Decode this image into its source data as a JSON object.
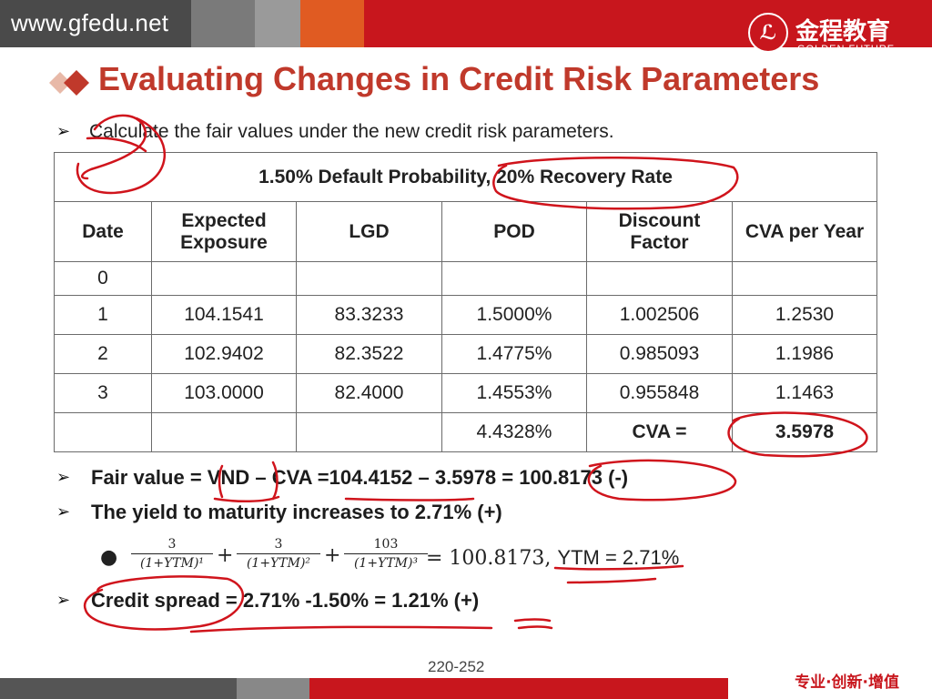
{
  "header": {
    "site_url": "www.gfedu.net",
    "brand_cn": "金程教育",
    "brand_en": "GOLDEN FUTURE",
    "logo_glyph": "ℒ"
  },
  "title": "Evaluating Changes in Credit Risk Parameters",
  "intro": "Calculate the fair values under the new credit risk parameters.",
  "table": {
    "banner": "1.50% Default Probability, 20% Recovery Rate",
    "headers": [
      "Date",
      "Expected Exposure",
      "LGD",
      "POD",
      "Discount Factor",
      "CVA per Year"
    ],
    "rows": [
      [
        "0",
        "",
        "",
        "",
        "",
        ""
      ],
      [
        "1",
        "104.1541",
        "83.3233",
        "1.5000%",
        "1.002506",
        "1.2530"
      ],
      [
        "2",
        "102.9402",
        "82.3522",
        "1.4775%",
        "0.985093",
        "1.1986"
      ],
      [
        "3",
        "103.0000",
        "82.4000",
        "1.4553%",
        "0.955848",
        "1.1463"
      ],
      [
        "",
        "",
        "",
        "4.4328%",
        "CVA =",
        "3.5978"
      ]
    ]
  },
  "fair_value_line": "Fair value = VND – CVA =104.4152 – 3.5978 = 100.8173 (-)",
  "ytm_line": "The yield to maturity increases to 2.71% (+)",
  "formula": {
    "terms": [
      {
        "num": "3",
        "den": "(1+YTM)¹"
      },
      {
        "num": "3",
        "den": "(1+YTM)²"
      },
      {
        "num": "103",
        "den": "(1+YTM)³"
      }
    ],
    "result": "= 100.8173,",
    "ytm": "YTM = 2.71%"
  },
  "credit_spread_line": "Credit spread = 2.71% -1.50% = 1.21% (+)",
  "page_number": "220-252",
  "slogan": "专业·创新·增值",
  "colors": {
    "title": "#c0392b",
    "band_dark": "#5a5a5a",
    "band_red": "#c8161d",
    "ink": "#d0141c"
  }
}
